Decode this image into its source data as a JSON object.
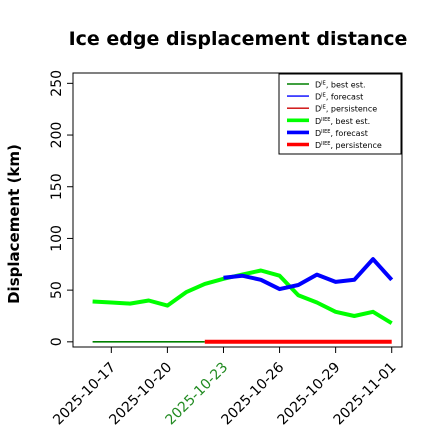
{
  "chart_data": {
    "type": "line",
    "title": "Ice edge displacement distance",
    "xlabel": "",
    "ylabel": "Displacement (km)",
    "ylim": [
      -5,
      260
    ],
    "xlim": [
      "2025-10-15",
      "2025-11-01"
    ],
    "x_ticks": [
      "2025-10-17",
      "2025-10-20",
      "2025-10-23",
      "2025-10-26",
      "2025-10-29",
      "2025-11-01"
    ],
    "y_ticks": [
      0,
      50,
      100,
      150,
      200,
      250
    ],
    "highlight_tick": "2025-10-23",
    "highlight_color": "#228B22",
    "grid": false,
    "legend_position": "top-right",
    "series": [
      {
        "name": "D<sup>IE</sup>, best est.",
        "color": "#008000",
        "width": "thin",
        "points": [
          [
            "2025-10-16",
            0
          ],
          [
            "2025-10-17",
            0
          ],
          [
            "2025-10-18",
            0
          ],
          [
            "2025-10-19",
            0
          ],
          [
            "2025-10-20",
            0
          ],
          [
            "2025-10-21",
            0
          ],
          [
            "2025-10-22",
            0
          ]
        ]
      },
      {
        "name": "D<sup>IE</sup>, forecast",
        "color": "#0000ff",
        "width": "thin",
        "points": []
      },
      {
        "name": "D<sup>IE</sup>, persistence",
        "color": "#cc0000",
        "width": "thin",
        "points": []
      },
      {
        "name": "D<sup>IIEE</sup>, best est.",
        "color": "#00ff00",
        "width": "thick",
        "points": [
          [
            "2025-10-16",
            39
          ],
          [
            "2025-10-17",
            38
          ],
          [
            "2025-10-18",
            37
          ],
          [
            "2025-10-19",
            40
          ],
          [
            "2025-10-20",
            35
          ],
          [
            "2025-10-21",
            48
          ],
          [
            "2025-10-22",
            56
          ],
          [
            "2025-10-23",
            61
          ],
          [
            "2025-10-24",
            65
          ],
          [
            "2025-10-25",
            69
          ],
          [
            "2025-10-26",
            64
          ],
          [
            "2025-10-27",
            45
          ],
          [
            "2025-10-28",
            38
          ],
          [
            "2025-10-29",
            29
          ],
          [
            "2025-10-30",
            25
          ],
          [
            "2025-10-31",
            29
          ],
          [
            "2025-11-01",
            18
          ]
        ]
      },
      {
        "name": "D<sup>IIEE</sup>, forecast",
        "color": "#0000ff",
        "width": "thick",
        "points": [
          [
            "2025-10-23",
            62
          ],
          [
            "2025-10-24",
            64
          ],
          [
            "2025-10-25",
            60
          ],
          [
            "2025-10-26",
            51
          ],
          [
            "2025-10-27",
            55
          ],
          [
            "2025-10-28",
            65
          ],
          [
            "2025-10-29",
            58
          ],
          [
            "2025-10-30",
            60
          ],
          [
            "2025-10-31",
            80
          ],
          [
            "2025-11-01",
            60
          ]
        ]
      },
      {
        "name": "D<sup>IIEE</sup>, persistence",
        "color": "#ff0000",
        "width": "thick",
        "points": [
          [
            "2025-10-22",
            0
          ],
          [
            "2025-10-23",
            0
          ],
          [
            "2025-10-24",
            0
          ],
          [
            "2025-10-25",
            0
          ],
          [
            "2025-10-26",
            0
          ],
          [
            "2025-10-27",
            0
          ],
          [
            "2025-10-28",
            0
          ],
          [
            "2025-10-29",
            0
          ],
          [
            "2025-10-30",
            0
          ],
          [
            "2025-10-31",
            0
          ],
          [
            "2025-11-01",
            0
          ]
        ]
      }
    ]
  }
}
